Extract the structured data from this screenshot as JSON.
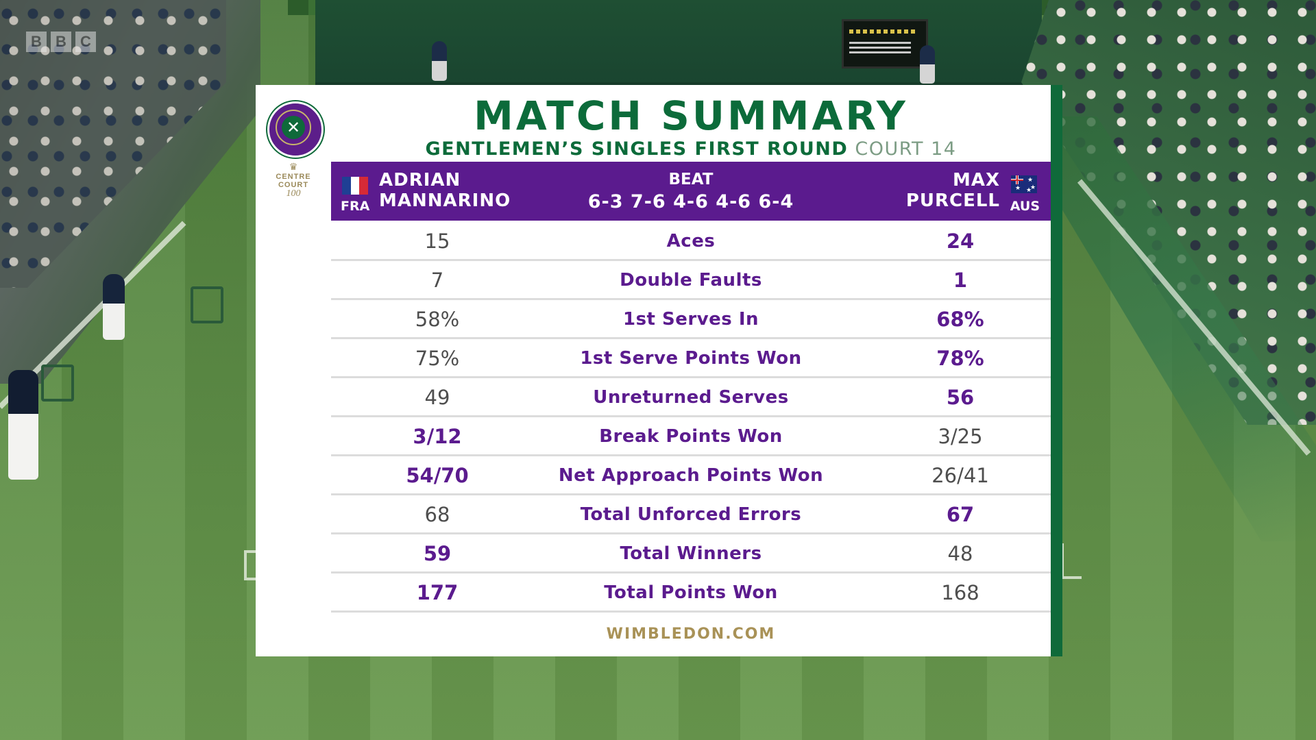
{
  "broadcaster": {
    "logo_letters": [
      "B",
      "B",
      "C"
    ]
  },
  "graphic": {
    "title": "MATCH SUMMARY",
    "round": "GENTLEMEN’S SINGLES FIRST ROUND",
    "court": "COURT 14",
    "badge": {
      "line1": "CENTRE",
      "line2": "COURT",
      "line3": "100"
    },
    "winner": {
      "first": "ADRIAN",
      "last": "MANNARINO",
      "country": "FRA",
      "flag": "france-flag-icon"
    },
    "loser": {
      "first": "MAX",
      "last": "PURCELL",
      "country": "AUS",
      "flag": "australia-flag-icon"
    },
    "result_word": "BEAT",
    "score": "6-3 7-6 4-6 4-6 6-4",
    "footer": "WIMBLEDON.COM",
    "colors": {
      "purple": "#5b1b8e",
      "green": "#0c6b3a",
      "gold": "#a99257"
    }
  },
  "stats": [
    {
      "label": "Aces",
      "left": "15",
      "right": "24",
      "bold": "right"
    },
    {
      "label": "Double Faults",
      "left": "7",
      "right": "1",
      "bold": "right"
    },
    {
      "label": "1st Serves In",
      "left": "58%",
      "right": "68%",
      "bold": "right"
    },
    {
      "label": "1st Serve Points Won",
      "left": "75%",
      "right": "78%",
      "bold": "right"
    },
    {
      "label": "Unreturned Serves",
      "left": "49",
      "right": "56",
      "bold": "right"
    },
    {
      "label": "Break Points Won",
      "left": "3/12",
      "right": "3/25",
      "bold": "left"
    },
    {
      "label": "Net Approach Points Won",
      "left": "54/70",
      "right": "26/41",
      "bold": "left"
    },
    {
      "label": "Total Unforced Errors",
      "left": "68",
      "right": "67",
      "bold": "right"
    },
    {
      "label": "Total Winners",
      "left": "59",
      "right": "48",
      "bold": "left"
    },
    {
      "label": "Total Points Won",
      "left": "177",
      "right": "168",
      "bold": "left"
    }
  ]
}
